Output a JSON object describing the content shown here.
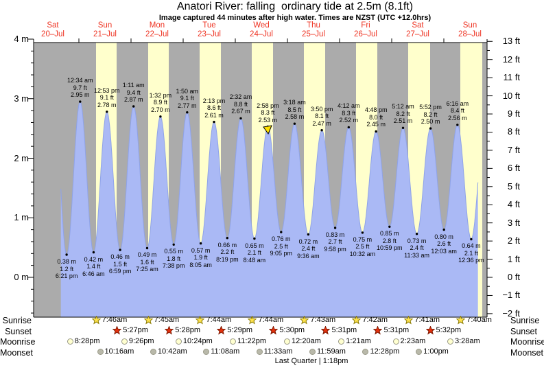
{
  "header": {
    "title": "Anatori River: falling  ordinary tide at 2.5m (8.1ft)",
    "subtitle": "Image captured 44 minutes after high water. Times are NZST (UTC +12.0hrs)"
  },
  "chart_data": {
    "type": "area",
    "title": "Anatori River: falling  ordinary tide at 2.5m (8.1ft)",
    "subtitle": "Image captured 44 minutes after high water. Times are NZST (UTC +12.0hrs)",
    "x_days": [
      {
        "dow": "Sat",
        "date": "20–Jul"
      },
      {
        "dow": "Sun",
        "date": "21–Jul"
      },
      {
        "dow": "Mon",
        "date": "22–Jul"
      },
      {
        "dow": "Tue",
        "date": "23–Jul"
      },
      {
        "dow": "Wed",
        "date": "24–Jul"
      },
      {
        "dow": "Thu",
        "date": "25–Jul"
      },
      {
        "dow": "Fri",
        "date": "26–Jul"
      },
      {
        "dow": "Sat",
        "date": "27–Jul"
      },
      {
        "dow": "Sun",
        "date": "28–Jul"
      }
    ],
    "y_left_ticks": [
      "4 m",
      "3 m",
      "2 m",
      "1 m",
      "0 m"
    ],
    "y_right_ticks": [
      "13 ft",
      "12 ft",
      "11 ft",
      "10 ft",
      "9 ft",
      "8 ft",
      "7 ft",
      "6 ft",
      "5 ft",
      "4 ft",
      "3 ft",
      "2 ft",
      "1 ft",
      "0 ft",
      "−1 ft",
      "−2 ft"
    ],
    "tides": [
      {
        "day": 0,
        "type": "low",
        "time": "6:21 pm",
        "m": "0.38 m",
        "ft": "1.2 ft"
      },
      {
        "day": 1,
        "type": "high",
        "time": "12:34 am",
        "m": "2.95 m",
        "ft": "9.7 ft"
      },
      {
        "day": 1,
        "type": "low",
        "time": "6:46 am",
        "m": "0.42 m",
        "ft": "1.4 ft"
      },
      {
        "day": 1,
        "type": "high",
        "time": "12:53 pm",
        "m": "2.78 m",
        "ft": "9.1 ft"
      },
      {
        "day": 1,
        "type": "low",
        "time": "6:59 pm",
        "m": "0.46 m",
        "ft": "1.5 ft"
      },
      {
        "day": 2,
        "type": "high",
        "time": "1:11 am",
        "m": "2.87 m",
        "ft": "9.4 ft"
      },
      {
        "day": 2,
        "type": "low",
        "time": "7:25 am",
        "m": "0.49 m",
        "ft": "1.6 ft"
      },
      {
        "day": 2,
        "type": "high",
        "time": "1:32 pm",
        "m": "2.70 m",
        "ft": "8.9 ft"
      },
      {
        "day": 2,
        "type": "low",
        "time": "7:38 pm",
        "m": "0.55 m",
        "ft": "1.8 ft"
      },
      {
        "day": 3,
        "type": "high",
        "time": "1:50 am",
        "m": "2.77 m",
        "ft": "9.1 ft"
      },
      {
        "day": 3,
        "type": "low",
        "time": "8:05 am",
        "m": "0.57 m",
        "ft": "1.9 ft"
      },
      {
        "day": 3,
        "type": "high",
        "time": "2:13 pm",
        "m": "2.61 m",
        "ft": "8.6 ft"
      },
      {
        "day": 3,
        "type": "low",
        "time": "8:19 pm",
        "m": "0.66 m",
        "ft": "2.2 ft"
      },
      {
        "day": 4,
        "type": "high",
        "time": "2:32 am",
        "m": "2.67 m",
        "ft": "8.8 ft"
      },
      {
        "day": 4,
        "type": "low",
        "time": "8:48 am",
        "m": "0.65 m",
        "ft": "2.1 ft"
      },
      {
        "day": 4,
        "type": "high",
        "time": "2:58 pm",
        "m": "2.53 m",
        "ft": "8.3 ft",
        "current": true
      },
      {
        "day": 4,
        "type": "low",
        "time": "9:05 pm",
        "m": "0.76 m",
        "ft": "2.5 ft"
      },
      {
        "day": 5,
        "type": "high",
        "time": "3:18 am",
        "m": "2.58 m",
        "ft": "8.5 ft"
      },
      {
        "day": 5,
        "type": "low",
        "time": "9:36 am",
        "m": "0.72 m",
        "ft": "2.4 ft"
      },
      {
        "day": 5,
        "type": "high",
        "time": "3:50 pm",
        "m": "2.47 m",
        "ft": "8.1 ft"
      },
      {
        "day": 5,
        "type": "low",
        "time": "9:58 pm",
        "m": "0.83 m",
        "ft": "2.7 ft"
      },
      {
        "day": 6,
        "type": "high",
        "time": "4:12 am",
        "m": "2.52 m",
        "ft": "8.3 ft"
      },
      {
        "day": 6,
        "type": "low",
        "time": "10:32 am",
        "m": "0.75 m",
        "ft": "2.5 ft"
      },
      {
        "day": 6,
        "type": "high",
        "time": "4:48 pm",
        "m": "2.45 m",
        "ft": "8.0 ft"
      },
      {
        "day": 6,
        "type": "low",
        "time": "10:59 pm",
        "m": "0.85 m",
        "ft": "2.8 ft"
      },
      {
        "day": 7,
        "type": "high",
        "time": "5:12 am",
        "m": "2.51 m",
        "ft": "8.2 ft"
      },
      {
        "day": 7,
        "type": "low",
        "time": "11:33 am",
        "m": "0.73 m",
        "ft": "2.4 ft"
      },
      {
        "day": 7,
        "type": "high",
        "time": "5:52 pm",
        "m": "2.50 m",
        "ft": "8.2 ft"
      },
      {
        "day": 8,
        "type": "low",
        "time": "12:03 am",
        "m": "0.80 m",
        "ft": "2.6 ft"
      },
      {
        "day": 8,
        "type": "high",
        "time": "6:16 am",
        "m": "2.56 m",
        "ft": "8.4 ft"
      },
      {
        "day": 8,
        "type": "low",
        "time": "12:36 pm",
        "m": "0.64 m",
        "ft": "2.1 ft"
      }
    ]
  },
  "colors": {
    "night_bg": "#ababab",
    "daylight_band": "#ffffcc",
    "tide_fill": "#aab9f5",
    "tide_stroke": "#8fa3e8",
    "date_red": "#ee3322",
    "sunrise_star": "#ffe34d",
    "sunrise_star_border": "#8a7a00",
    "sunset_star": "#e5310e",
    "sunset_star_border": "#7c1800",
    "moonrise_fill": "#ffffd0",
    "moonset_fill": "#b9b9aa",
    "moon_border": "#999988",
    "current_marker": "#ffe000"
  },
  "astro": {
    "row_labels": [
      "Sunrise",
      "Sunset",
      "Moonrise",
      "Moonset"
    ],
    "sunrise": [
      {
        "day": 1,
        "time": "7:46am"
      },
      {
        "day": 2,
        "time": "7:45am"
      },
      {
        "day": 3,
        "time": "7:44am"
      },
      {
        "day": 4,
        "time": "7:44am"
      },
      {
        "day": 5,
        "time": "7:43am"
      },
      {
        "day": 6,
        "time": "7:42am"
      },
      {
        "day": 7,
        "time": "7:41am"
      },
      {
        "day": 8,
        "time": "7:40am"
      }
    ],
    "sunset": [
      {
        "day": 1,
        "time": "5:27pm"
      },
      {
        "day": 2,
        "time": "5:28pm"
      },
      {
        "day": 3,
        "time": "5:29pm"
      },
      {
        "day": 4,
        "time": "5:30pm"
      },
      {
        "day": 5,
        "time": "5:31pm"
      },
      {
        "day": 6,
        "time": "5:31pm"
      },
      {
        "day": 7,
        "time": "5:32pm"
      }
    ],
    "moonrise": [
      {
        "day": 0,
        "time": "8:28pm"
      },
      {
        "day": 1,
        "time": "9:26pm"
      },
      {
        "day": 2,
        "time": "10:24pm"
      },
      {
        "day": 3,
        "time": "11:22pm"
      },
      {
        "day": 5,
        "time": "12:20am"
      },
      {
        "day": 6,
        "time": "1:21am"
      },
      {
        "day": 7,
        "time": "2:23am"
      },
      {
        "day": 8,
        "time": "3:28am"
      }
    ],
    "moonset": [
      {
        "day": 1,
        "time": "10:16am"
      },
      {
        "day": 2,
        "time": "10:42am"
      },
      {
        "day": 3,
        "time": "11:08am"
      },
      {
        "day": 4,
        "time": "11:33am"
      },
      {
        "day": 5,
        "time": "11:59am"
      },
      {
        "day": 6,
        "time": "12:28pm"
      },
      {
        "day": 7,
        "time": "1:00pm"
      }
    ],
    "moon_phase": "Last Quarter | 1:18pm"
  }
}
